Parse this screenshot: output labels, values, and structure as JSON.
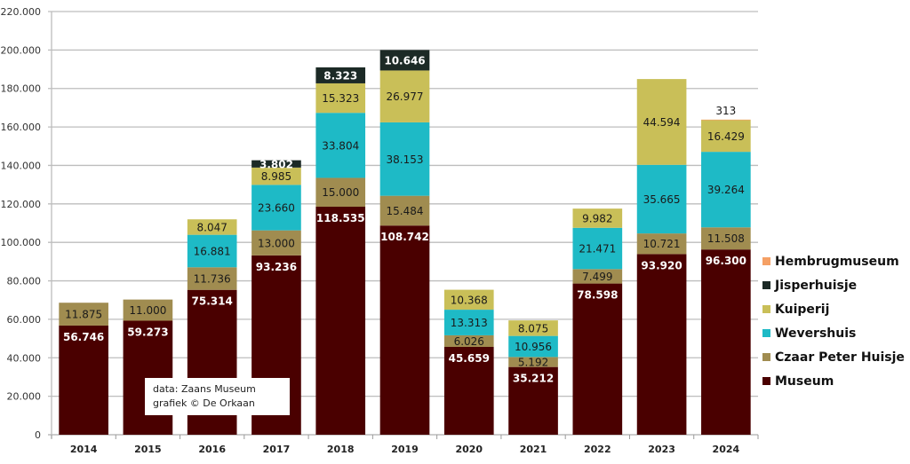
{
  "chart_data": {
    "type": "bar",
    "stacked": true,
    "title": "",
    "xlabel": "",
    "ylabel": "",
    "categories": [
      "2014",
      "2015",
      "2016",
      "2017",
      "2018",
      "2019",
      "2020",
      "2021",
      "2022",
      "2023",
      "2024"
    ],
    "ylim": [
      0,
      220000
    ],
    "yticks": [
      0,
      20000,
      40000,
      60000,
      80000,
      100000,
      120000,
      140000,
      160000,
      180000,
      200000,
      220000
    ],
    "ytick_labels": [
      "0",
      "20.000",
      "40.000",
      "60.000",
      "80.000",
      "100.000",
      "120.000",
      "140.000",
      "160.000",
      "180.000",
      "200.000",
      "220.000"
    ],
    "grid": true,
    "legend_position": "right",
    "series": [
      {
        "name": "Museum",
        "color": "#4a0000",
        "label_color": "#ffffff",
        "label_bold": true,
        "values": [
          56746,
          59273,
          75314,
          93236,
          118535,
          108742,
          45659,
          35212,
          78598,
          93920,
          96300
        ],
        "labels": [
          "56.746",
          "59.273",
          "75.314",
          "93.236",
          "118.535",
          "108.742",
          "45.659",
          "35.212",
          "78.598",
          "93.920",
          "96.300"
        ]
      },
      {
        "name": "Czaar Peter Huisje",
        "color": "#a08c50",
        "label_color": "#1a1a1a",
        "label_bold": false,
        "values": [
          11875,
          11000,
          11736,
          13000,
          15000,
          15484,
          6026,
          5192,
          7499,
          10721,
          11508
        ],
        "labels": [
          "11.875",
          "11.000",
          "11.736",
          "13.000",
          "15.000",
          "15.484",
          "6.026",
          "5.192",
          "7.499",
          "10.721",
          "11.508"
        ]
      },
      {
        "name": "Wevershuis",
        "color": "#1ebac6",
        "label_color": "#1a1a1a",
        "label_bold": false,
        "values": [
          0,
          0,
          16881,
          23660,
          33804,
          38153,
          13313,
          10956,
          21471,
          35665,
          39264
        ],
        "labels": [
          "",
          "",
          "16.881",
          "23.660",
          "33.804",
          "38.153",
          "13.313",
          "10.956",
          "21.471",
          "35.665",
          "39.264"
        ]
      },
      {
        "name": "Kuiperij",
        "color": "#c9bf58",
        "label_color": "#1a1a1a",
        "label_bold": false,
        "values": [
          0,
          0,
          8047,
          8985,
          15323,
          26977,
          10368,
          8075,
          9982,
          44594,
          16429
        ],
        "labels": [
          "",
          "",
          "8.047",
          "8.985",
          "15.323",
          "26.977",
          "10.368",
          "8.075",
          "9.982",
          "44.594",
          "16.429"
        ]
      },
      {
        "name": "Jisperhuisje",
        "color": "#1c2a26",
        "label_color": "#ffffff",
        "label_bold": true,
        "values": [
          0,
          0,
          0,
          3802,
          8323,
          10646,
          0,
          0,
          0,
          0,
          0
        ],
        "labels": [
          "",
          "",
          "",
          "3.802",
          "8.323",
          "10.646",
          "",
          "",
          "",
          "",
          ""
        ]
      },
      {
        "name": "Hembrugmuseum",
        "color": "#f5a065",
        "label_color": "#1a1a1a",
        "label_bold": false,
        "label_outside": true,
        "values": [
          0,
          0,
          0,
          0,
          0,
          0,
          0,
          0,
          0,
          0,
          313
        ],
        "labels": [
          "",
          "",
          "",
          "",
          "",
          "",
          "",
          "",
          "",
          "",
          "313"
        ]
      }
    ],
    "legend_order": [
      "Hembrugmuseum",
      "Jisperhuisje",
      "Kuiperij",
      "Wevershuis",
      "Czaar Peter Huisje",
      "Museum"
    ]
  },
  "source_note": {
    "line1": "data: Zaans Museum",
    "line2": "grafiek © De Orkaan"
  }
}
